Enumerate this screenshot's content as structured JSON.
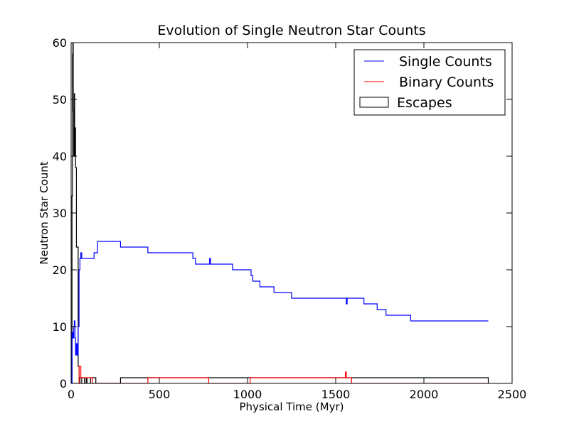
{
  "chart_data": {
    "type": "line",
    "title": "Evolution of Single Neutron Star Counts",
    "xlabel": "Physical Time (Myr)",
    "ylabel": "Neutron Star Count",
    "xlim": [
      0,
      2500
    ],
    "ylim": [
      0,
      60
    ],
    "xticks": [
      0,
      500,
      1000,
      1500,
      2000,
      2500
    ],
    "yticks": [
      0,
      10,
      20,
      30,
      40,
      50,
      60
    ],
    "grid": false,
    "legend_position": "top-right",
    "series": [
      {
        "name": "Single Counts",
        "color": "#0000ff",
        "style": "step",
        "x": [
          0,
          5,
          10,
          15,
          18,
          22,
          25,
          30,
          35,
          40,
          45,
          50,
          55,
          60,
          65,
          70,
          130,
          150,
          280,
          435,
          690,
          705,
          780,
          785,
          790,
          915,
          1020,
          1030,
          1070,
          1150,
          1250,
          1555,
          1560,
          1565,
          1660,
          1735,
          1785,
          1925,
          2365
        ],
        "y": [
          0,
          9,
          8,
          10,
          11,
          8,
          5,
          7,
          5,
          10,
          20,
          22,
          23,
          22,
          22,
          22,
          23,
          25,
          24,
          23,
          22,
          21,
          21,
          22,
          21,
          20,
          19,
          18,
          17,
          16,
          15,
          15,
          14,
          15,
          14,
          13,
          12,
          11,
          11
        ]
      },
      {
        "name": "Binary Counts",
        "color": "#ff0000",
        "style": "step",
        "x": [
          0,
          40,
          45,
          55,
          65,
          120,
          435,
          780,
          1015,
          1555,
          1560,
          1590,
          2365
        ],
        "y": [
          0,
          0,
          3,
          1,
          1,
          0,
          1,
          0,
          1,
          2,
          1,
          0,
          0
        ]
      },
      {
        "name": "Escapes",
        "color": "#000000",
        "style": "histogram",
        "x": [
          0,
          5,
          8,
          10,
          12,
          15,
          18,
          20,
          22,
          25,
          28,
          30,
          35,
          40,
          45,
          50,
          60,
          75,
          85,
          90,
          110,
          140,
          280,
          690,
          700,
          780,
          915,
          1030,
          1070,
          1250,
          1560,
          1660,
          1735,
          1785,
          1925,
          2365
        ],
        "y": [
          0,
          33,
          58,
          60,
          48,
          40,
          51,
          40,
          45,
          38,
          38,
          24,
          24,
          3,
          1,
          0,
          1,
          0,
          1,
          0,
          1,
          0,
          1,
          1,
          1,
          1,
          1,
          1,
          1,
          1,
          1,
          1,
          1,
          1,
          1,
          0
        ]
      }
    ]
  }
}
